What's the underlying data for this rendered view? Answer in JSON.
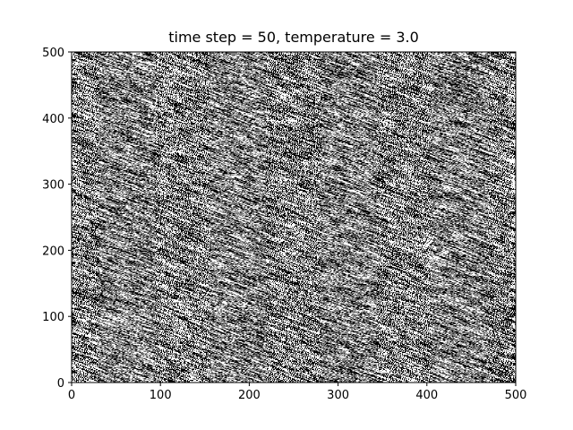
{
  "chart_data": {
    "type": "heatmap",
    "title": "time step = 50, temperature = 3.0",
    "xlabel": "",
    "ylabel": "",
    "xlim": [
      0,
      500
    ],
    "ylim": [
      0,
      500
    ],
    "x_ticks": [
      0,
      100,
      200,
      300,
      400,
      500
    ],
    "y_ticks": [
      0,
      100,
      200,
      300,
      400,
      500
    ],
    "x_tick_labels": [
      "0",
      "100",
      "200",
      "300",
      "400",
      "500"
    ],
    "y_tick_labels": [
      "0",
      "100",
      "200",
      "300",
      "400",
      "500"
    ],
    "grid_size": [
      500,
      500
    ],
    "values": [
      -1,
      1
    ],
    "colors": {
      "-1": "#000000",
      "1": "#ffffff"
    },
    "black_fraction": 0.5,
    "grid": false,
    "legend": "none"
  }
}
